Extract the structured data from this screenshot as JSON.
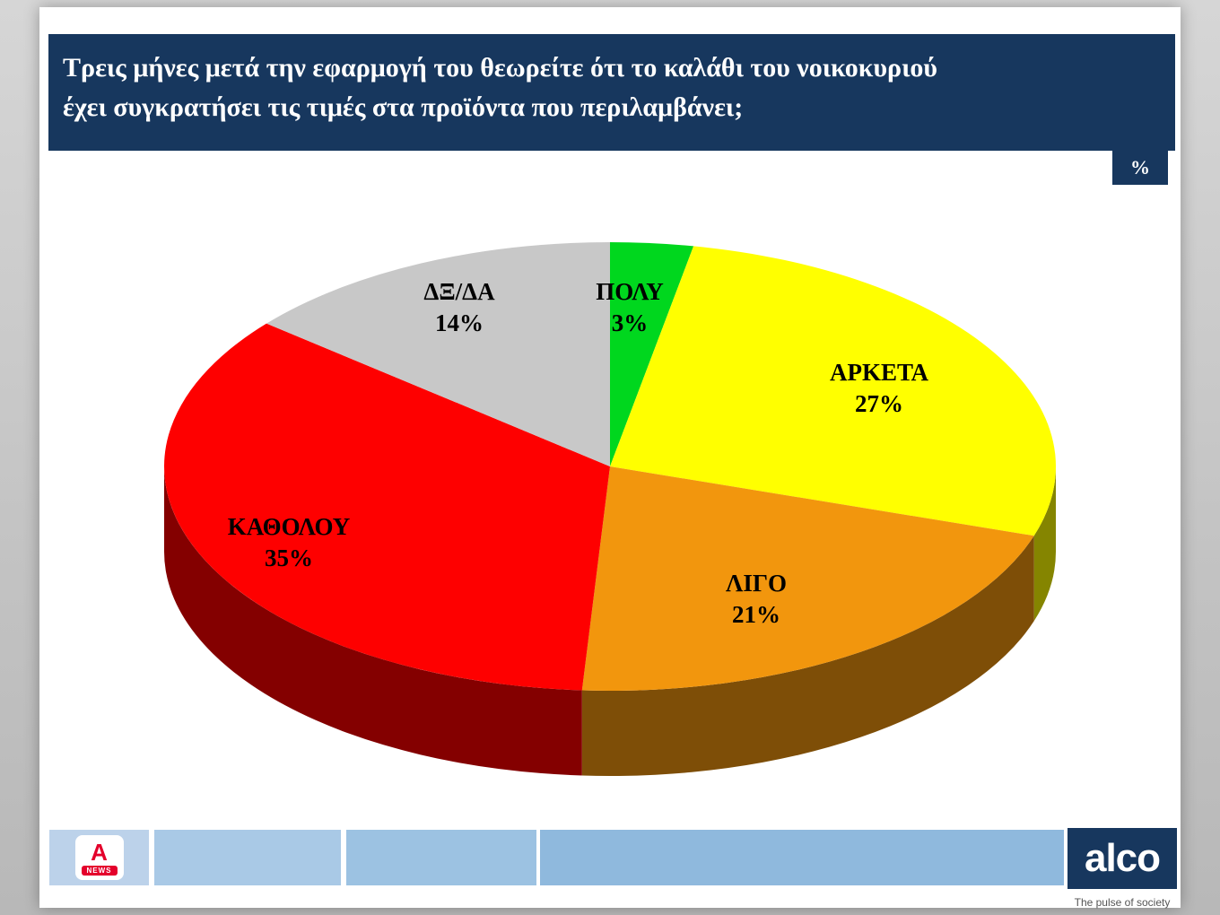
{
  "header": {
    "line1": "Τρεις μήνες μετά την εφαρμογή του θεωρείτε ότι το καλάθι του νοικοκυριού",
    "line2": "έχει συγκρατήσει τις τιμές στα προϊόντα που περιλαμβάνει;",
    "unit_badge": "%"
  },
  "chart_data": {
    "type": "pie",
    "style": "3d",
    "title": "Τρεις μήνες μετά την εφαρμογή του θεωρείτε ότι το καλάθι του νοικοκυριού έχει συγκρατήσει τις τιμές στα προϊόντα που περιλαμβάνει;",
    "labels": [
      "ΠΟΛΥ",
      "ΑΡΚΕΤΑ",
      "ΛΙΓΟ",
      "ΚΑΘΟΛΟΥ",
      "ΔΞ/ΔΑ"
    ],
    "values": [
      3,
      27,
      21,
      35,
      14
    ],
    "colors": [
      "#00d71e",
      "#ffff00",
      "#f2960d",
      "#fe0000",
      "#c8c8c8"
    ],
    "unit": "%",
    "start_angle_deg": -90,
    "direction": "clockwise",
    "legend": "none",
    "data_labels": "category name + percent"
  },
  "footer": {
    "alpha_news": {
      "letter": "A",
      "news": "NEWS"
    },
    "alco": {
      "name": "alco",
      "tagline": "The pulse of society"
    },
    "bar_colors": [
      "#bcd2ea",
      "#a9c9e6",
      "#9cc2e2",
      "#8fb9dd"
    ]
  },
  "colors": {
    "navy": "#17375e",
    "page_background": "#c6c6c6",
    "card_background": "#ffffff",
    "label_text": "#000000",
    "alpha_red": "#e4002b"
  }
}
